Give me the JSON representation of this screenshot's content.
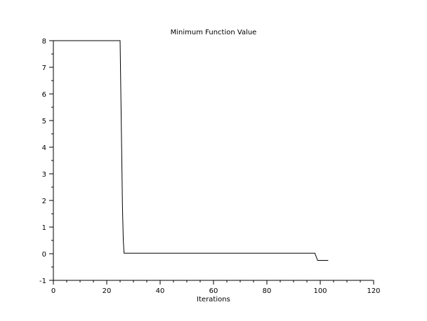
{
  "chart_data": {
    "type": "line",
    "title": "Minimum Function Value",
    "xlabel": "Iterations",
    "ylabel": "",
    "xlim": [
      0,
      120
    ],
    "ylim": [
      -1,
      8
    ],
    "xticks": [
      0,
      20,
      40,
      60,
      80,
      100,
      120
    ],
    "yticks": [
      -1,
      0,
      1,
      2,
      3,
      4,
      5,
      6,
      7,
      8
    ],
    "grid": false,
    "legend": "none",
    "series": [
      {
        "color": "#000000",
        "x": [
          0,
          25,
          25.3,
          25.6,
          25.9,
          26.2,
          26.5,
          98,
          99,
          103
        ],
        "y": [
          8,
          8,
          5.9,
          3.8,
          1.7,
          0.5,
          0.02,
          0.02,
          -0.25,
          -0.25
        ]
      }
    ]
  }
}
